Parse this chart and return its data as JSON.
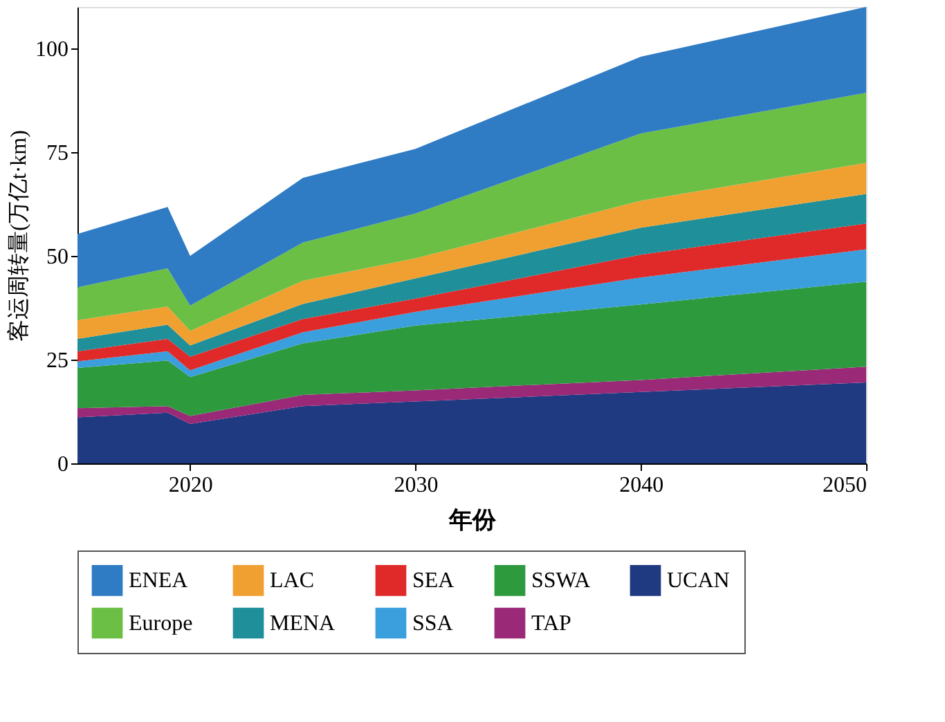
{
  "chart_data": {
    "type": "area",
    "stacked": true,
    "xlabel": "年份",
    "ylabel": "客运周转量(万亿t·km)",
    "x": [
      2015,
      2019,
      2020,
      2025,
      2030,
      2040,
      2050
    ],
    "xlim": [
      2015,
      2050
    ],
    "xticks": [
      2020,
      2030,
      2040,
      2050
    ],
    "ylim": [
      0,
      110
    ],
    "yticks": [
      0,
      25,
      50,
      75,
      100
    ],
    "grid": false,
    "legend": "bottom",
    "series": [
      {
        "name": "UCAN",
        "color": "#1f3a80",
        "values": [
          11.1,
          12.2,
          9.5,
          13.8,
          14.9,
          17.2,
          19.5
        ]
      },
      {
        "name": "TAP",
        "color": "#9a2a78",
        "values": [
          2.2,
          1.6,
          1.9,
          2.7,
          2.7,
          2.9,
          3.8
        ]
      },
      {
        "name": "SSWA",
        "color": "#2e9a3e",
        "values": [
          9.7,
          11.0,
          9.4,
          12.4,
          15.6,
          18.2,
          20.5
        ]
      },
      {
        "name": "SSA",
        "color": "#3a9fdc",
        "values": [
          1.6,
          2.2,
          1.6,
          2.7,
          3.3,
          6.5,
          7.8
        ]
      },
      {
        "name": "SEA",
        "color": "#e02a2a",
        "values": [
          2.4,
          3.0,
          3.3,
          3.2,
          3.2,
          5.5,
          6.2
        ]
      },
      {
        "name": "MENA",
        "color": "#1f8f9a",
        "values": [
          3.0,
          3.4,
          2.7,
          3.6,
          4.9,
          6.5,
          7.1
        ]
      },
      {
        "name": "LAC",
        "color": "#f0a030",
        "values": [
          4.5,
          4.4,
          3.5,
          5.6,
          4.8,
          6.5,
          7.5
        ]
      },
      {
        "name": "Europe",
        "color": "#6cbf45",
        "values": [
          7.9,
          9.2,
          6.1,
          9.2,
          10.8,
          16.2,
          16.9
        ]
      },
      {
        "name": "ENEA",
        "color": "#2f7cc4",
        "values": [
          12.9,
          14.8,
          12.0,
          15.6,
          15.6,
          18.5,
          20.7
        ]
      }
    ]
  }
}
